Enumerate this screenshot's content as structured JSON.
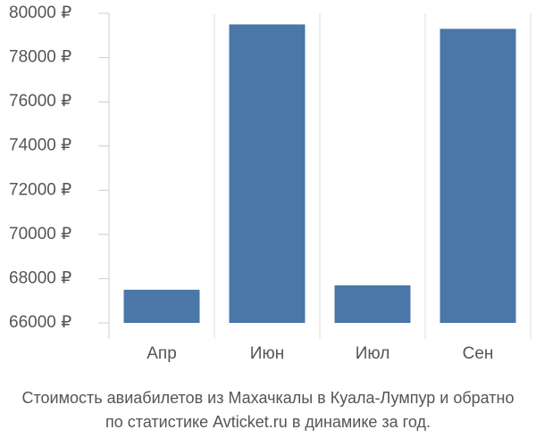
{
  "chart_data": {
    "type": "bar",
    "title": "Стоимость авиабилетов из Махачкалы в Куала-Лумпур и обратно",
    "subtitle": "по статистике Avticket.ru в динамике за год.",
    "categories": [
      "Апр",
      "Июн",
      "Июл",
      "Сен"
    ],
    "values": [
      67500,
      79500,
      67700,
      79300
    ],
    "color": "#4a76a8",
    "ylim": [
      66000,
      80000
    ],
    "yticks": [
      {
        "value": 66000,
        "label": "66000 ₽"
      },
      {
        "value": 68000,
        "label": "68000 ₽"
      },
      {
        "value": 70000,
        "label": "70000 ₽"
      },
      {
        "value": 72000,
        "label": "72000 ₽"
      },
      {
        "value": 74000,
        "label": "74000 ₽"
      },
      {
        "value": 76000,
        "label": "76000 ₽"
      },
      {
        "value": 78000,
        "label": "78000 ₽"
      },
      {
        "value": 80000,
        "label": "80000 ₽"
      }
    ],
    "grid": true
  }
}
